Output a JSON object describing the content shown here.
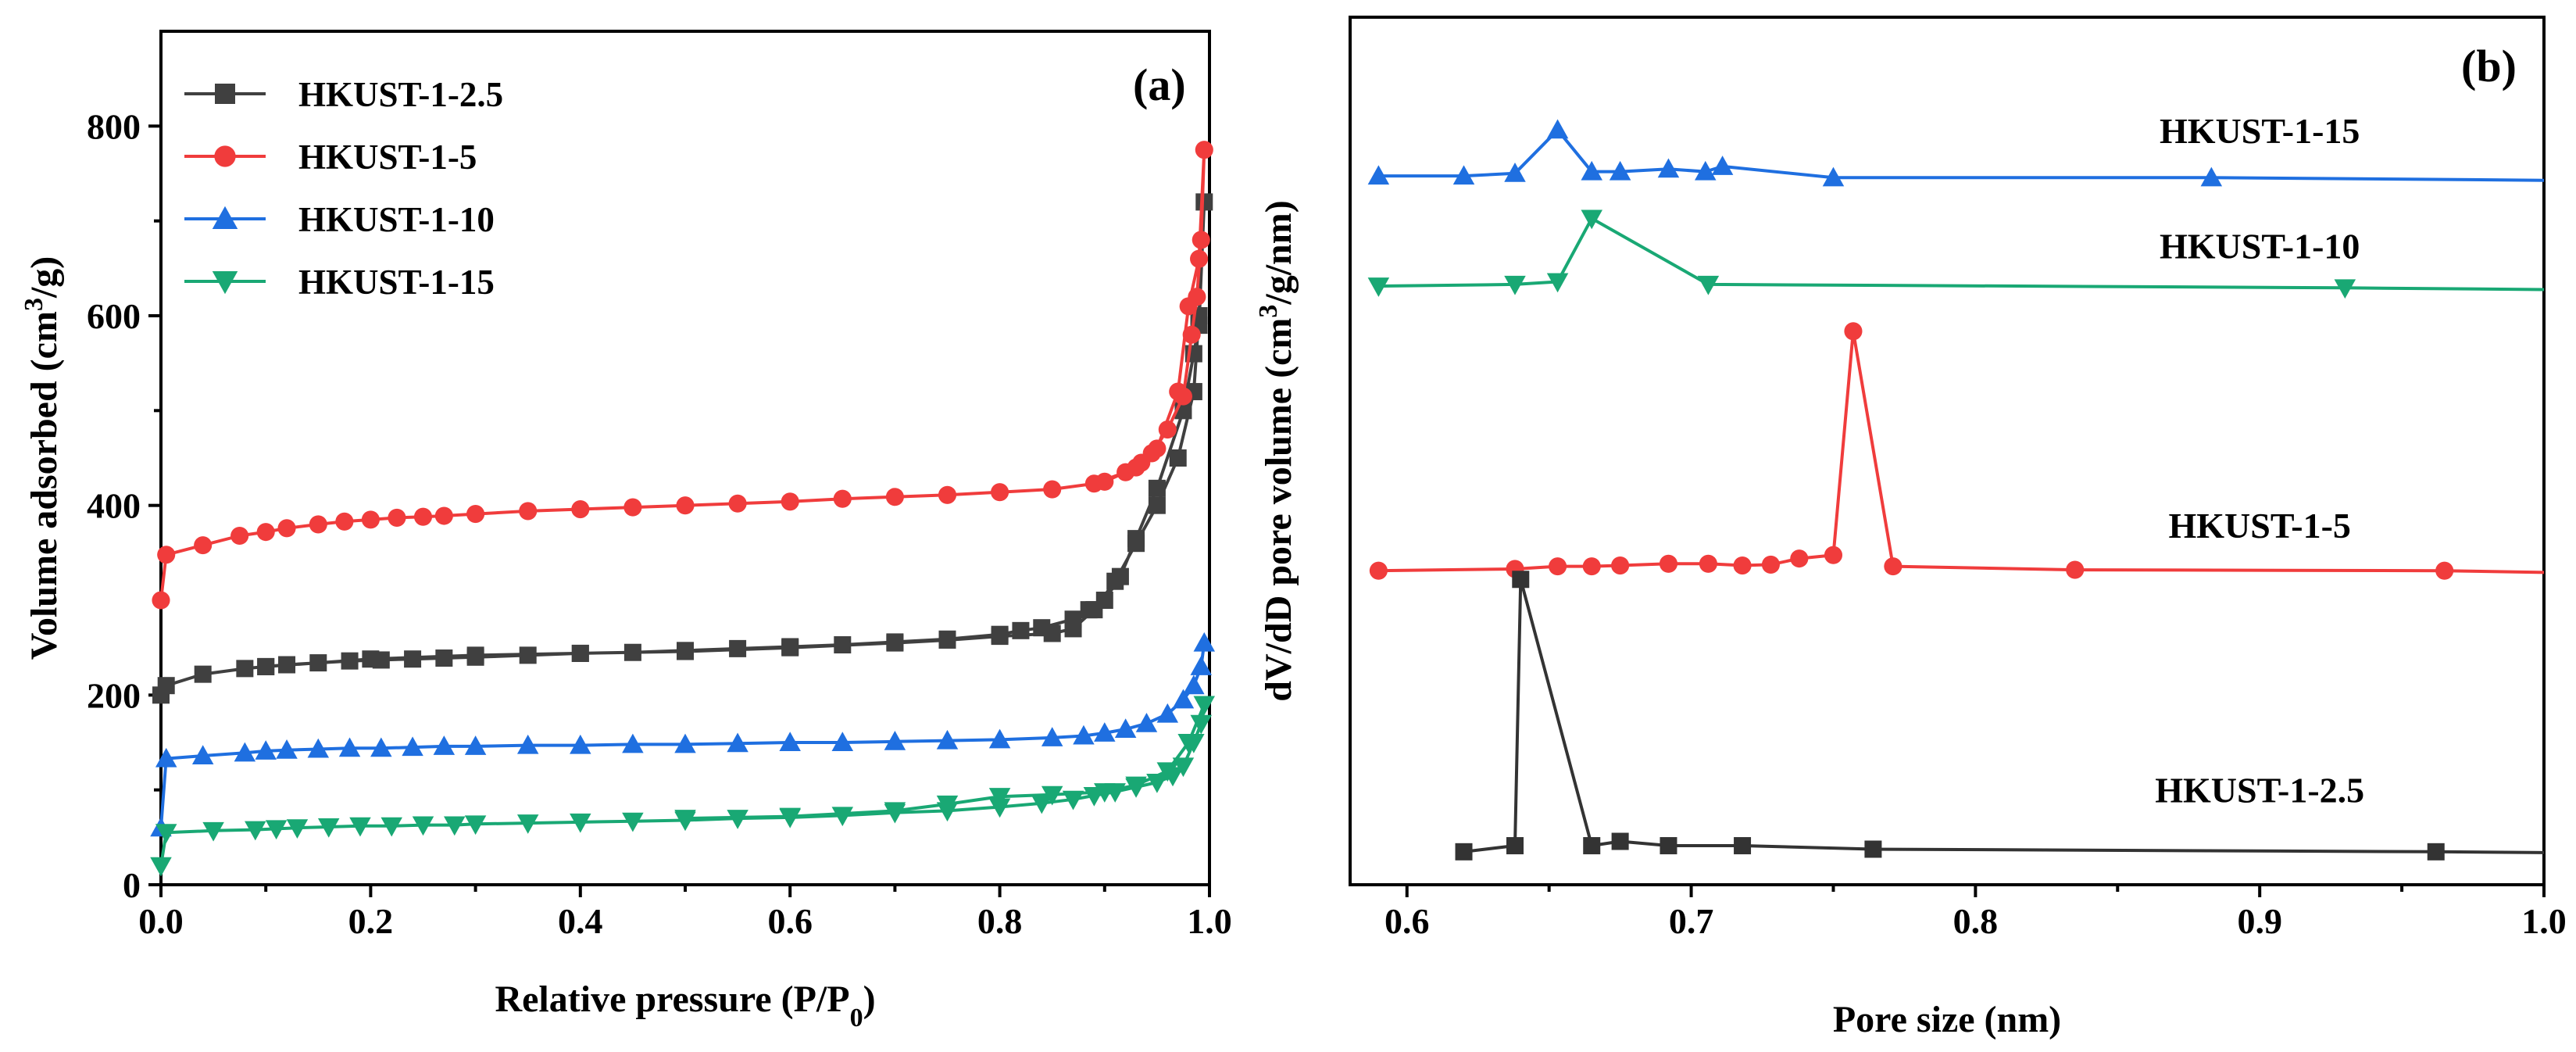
{
  "chart_data": [
    {
      "type": "line",
      "panel_label": "(a)",
      "xlabel": "Relative pressure (P/P",
      "xlabel_sub": "0",
      "xlabel_end": ")",
      "ylabel": "Volume adsorbed (cm",
      "ylabel_sup": "3",
      "ylabel_end": "/g)",
      "xlim": [
        0,
        1.0
      ],
      "ylim": [
        0,
        900
      ],
      "xticks": [
        "0.0",
        "0.2",
        "0.4",
        "0.6",
        "0.8",
        "1.0"
      ],
      "xtick_values": [
        0,
        0.2,
        0.4,
        0.6,
        0.8,
        1.0
      ],
      "yticks": [
        "0",
        "200",
        "400",
        "600",
        "800"
      ],
      "ytick_values": [
        0,
        200,
        400,
        600,
        800
      ],
      "legend_position": "top-left",
      "series": [
        {
          "name": "HKUST-1-2.5",
          "color": "#404040",
          "marker": "square",
          "x": [
            0.0,
            0.005,
            0.04,
            0.08,
            0.1,
            0.12,
            0.15,
            0.18,
            0.21,
            0.24,
            0.27,
            0.3,
            0.35,
            0.4,
            0.45,
            0.5,
            0.55,
            0.6,
            0.65,
            0.7,
            0.75,
            0.8,
            0.82,
            0.84,
            0.87,
            0.885,
            0.9,
            0.915,
            0.93,
            0.95,
            0.975,
            0.985,
            0.99,
            0.995,
            0.99,
            0.985,
            0.97,
            0.95,
            0.93,
            0.91,
            0.89,
            0.87,
            0.85,
            0.8,
            0.75,
            0.7,
            0.6,
            0.5,
            0.4,
            0.3,
            0.2,
            0.1
          ],
          "y": [
            200,
            210,
            222,
            228,
            230,
            232,
            234,
            236,
            237,
            238,
            239,
            240,
            242,
            244,
            245,
            247,
            249,
            251,
            253,
            256,
            259,
            264,
            268,
            271,
            280,
            290,
            300,
            325,
            365,
            418,
            500,
            560,
            590,
            720,
            600,
            520,
            450,
            400,
            360,
            320,
            290,
            270,
            265,
            262,
            258,
            255,
            250,
            246,
            244,
            242,
            238,
            230
          ]
        },
        {
          "name": "HKUST-1-5",
          "color": "#f03c3c",
          "marker": "circle",
          "x": [
            0.0,
            0.005,
            0.04,
            0.075,
            0.1,
            0.12,
            0.15,
            0.175,
            0.2,
            0.225,
            0.25,
            0.27,
            0.3,
            0.35,
            0.4,
            0.45,
            0.5,
            0.55,
            0.6,
            0.65,
            0.7,
            0.75,
            0.8,
            0.85,
            0.89,
            0.92,
            0.935,
            0.945,
            0.96,
            0.975,
            0.983,
            0.988,
            0.992,
            0.995,
            0.99,
            0.98,
            0.97,
            0.95,
            0.93,
            0.9
          ],
          "y": [
            300,
            348,
            358,
            368,
            372,
            376,
            380,
            383,
            385,
            387,
            388,
            389,
            391,
            394,
            396,
            398,
            400,
            402,
            404,
            407,
            409,
            411,
            414,
            417,
            423,
            435,
            445,
            455,
            480,
            515,
            580,
            620,
            680,
            775,
            660,
            610,
            520,
            460,
            440,
            425
          ]
        },
        {
          "name": "HKUST-1-10",
          "color": "#1f6fe0",
          "marker": "triangle-up",
          "x": [
            0.0,
            0.005,
            0.04,
            0.08,
            0.1,
            0.12,
            0.15,
            0.18,
            0.21,
            0.24,
            0.27,
            0.3,
            0.35,
            0.4,
            0.45,
            0.5,
            0.55,
            0.6,
            0.65,
            0.7,
            0.75,
            0.8,
            0.85,
            0.88,
            0.9,
            0.92,
            0.94,
            0.96,
            0.975,
            0.985,
            0.992,
            0.995
          ],
          "y": [
            60,
            133,
            136,
            139,
            141,
            142,
            143,
            144,
            144,
            145,
            146,
            146,
            147,
            147,
            148,
            148,
            149,
            150,
            150,
            151,
            152,
            153,
            155,
            157,
            160,
            164,
            170,
            180,
            195,
            210,
            230,
            255
          ]
        },
        {
          "name": "HKUST-1-15",
          "color": "#19a874",
          "marker": "triangle-down",
          "x": [
            0.0,
            0.005,
            0.05,
            0.09,
            0.11,
            0.13,
            0.16,
            0.19,
            0.22,
            0.25,
            0.28,
            0.3,
            0.35,
            0.4,
            0.45,
            0.5,
            0.55,
            0.6,
            0.65,
            0.7,
            0.75,
            0.8,
            0.84,
            0.87,
            0.89,
            0.91,
            0.93,
            0.95,
            0.965,
            0.975,
            0.985,
            0.992,
            0.995,
            0.98,
            0.96,
            0.93,
            0.9,
            0.85,
            0.8,
            0.75,
            0.7,
            0.6,
            0.5
          ],
          "y": [
            20,
            55,
            57,
            58,
            59,
            60,
            61,
            62,
            62,
            63,
            63,
            64,
            65,
            66,
            67,
            68,
            70,
            71,
            73,
            76,
            78,
            82,
            86,
            90,
            94,
            98,
            103,
            108,
            115,
            125,
            150,
            170,
            190,
            150,
            120,
            105,
            98,
            95,
            93,
            85,
            78,
            72,
            70
          ]
        }
      ]
    },
    {
      "type": "line",
      "panel_label": "(b)",
      "xlabel": "Pore size (nm)",
      "ylabel": "dV/dD pore volume (cm",
      "ylabel_sup": "3",
      "ylabel_end": "/g/nm)",
      "xlim": [
        0.58,
        1.0
      ],
      "ylim": [
        0,
        10
      ],
      "xticks": [
        "0.6",
        "0.7",
        "0.8",
        "0.9",
        "1.0"
      ],
      "xtick_values": [
        0.6,
        0.7,
        0.8,
        0.9,
        1.0
      ],
      "series": [
        {
          "name": "HKUST-1-15",
          "color": "#1f6fe0",
          "marker": "triangle-up",
          "x": [
            0.59,
            0.62,
            0.638,
            0.653,
            0.665,
            0.675,
            0.692,
            0.705,
            0.711,
            0.75,
            0.883,
            1.0
          ],
          "y": [
            8.17,
            8.17,
            8.2,
            8.7,
            8.22,
            8.22,
            8.25,
            8.22,
            8.28,
            8.15,
            8.15,
            8.12
          ],
          "label_x": 0.9,
          "label_y": 8.55
        },
        {
          "name": "HKUST-1-10",
          "color": "#19a874",
          "marker": "triangle-down",
          "x": [
            0.59,
            0.638,
            0.653,
            0.665,
            0.706,
            0.93,
            1.0
          ],
          "y": [
            6.9,
            6.92,
            6.95,
            7.68,
            6.92,
            6.88,
            6.86
          ],
          "label_x": 0.9,
          "label_y": 7.22
        },
        {
          "name": "HKUST-1-5",
          "color": "#f03c3c",
          "marker": "circle",
          "x": [
            0.59,
            0.638,
            0.653,
            0.665,
            0.675,
            0.692,
            0.706,
            0.718,
            0.728,
            0.738,
            0.75,
            0.757,
            0.771,
            0.835,
            0.965,
            1.0
          ],
          "y": [
            3.62,
            3.64,
            3.67,
            3.67,
            3.68,
            3.7,
            3.7,
            3.68,
            3.69,
            3.76,
            3.8,
            6.38,
            3.67,
            3.63,
            3.62,
            3.6
          ],
          "label_x": 0.9,
          "label_y": 4.0
        },
        {
          "name": "HKUST-1-2.5",
          "color": "#333333",
          "marker": "square",
          "x": [
            0.62,
            0.638,
            0.64,
            0.665,
            0.675,
            0.692,
            0.718,
            0.764,
            0.962,
            1.0
          ],
          "y": [
            0.38,
            0.45,
            3.52,
            0.45,
            0.5,
            0.45,
            0.45,
            0.41,
            0.38,
            0.37
          ],
          "label_x": 0.9,
          "label_y": 0.95
        }
      ]
    }
  ]
}
